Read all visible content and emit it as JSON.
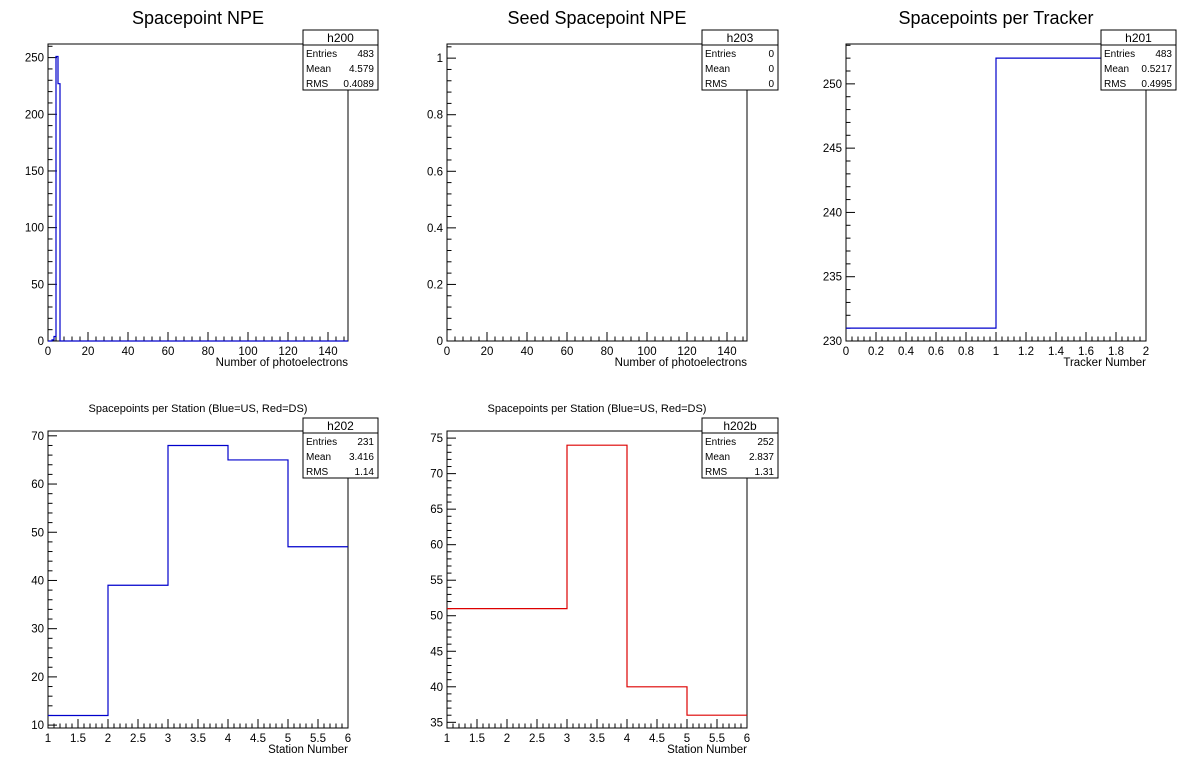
{
  "chart_data": [
    {
      "type": "histogram",
      "title": "Spacepoint NPE",
      "xlabel": "Number of photoelectrons",
      "ylabel": "",
      "xlim": [
        0,
        150
      ],
      "ylim": [
        0,
        262
      ],
      "xticks": [
        0,
        20,
        40,
        60,
        80,
        100,
        120,
        140
      ],
      "yticks": [
        0,
        50,
        100,
        150,
        200,
        250
      ],
      "line_color": "#0000cc",
      "bins": [
        {
          "x0": 0,
          "x1": 2,
          "value": 0
        },
        {
          "x0": 2,
          "x1": 3,
          "value": 1
        },
        {
          "x0": 3,
          "x1": 4,
          "value": 4
        },
        {
          "x0": 4,
          "x1": 5,
          "value": 251
        },
        {
          "x0": 5,
          "x1": 6,
          "value": 227
        },
        {
          "x0": 6,
          "x1": 150,
          "value": 0
        }
      ],
      "stats": {
        "name": "h200",
        "rows": [
          [
            "Entries",
            "483"
          ],
          [
            "Mean",
            "4.579"
          ],
          [
            "RMS",
            "0.4089"
          ]
        ]
      }
    },
    {
      "type": "histogram",
      "title": "Seed Spacepoint NPE",
      "xlabel": "Number of photoelectrons",
      "ylabel": "",
      "xlim": [
        0,
        150
      ],
      "ylim": [
        0,
        1.05
      ],
      "xticks": [
        0,
        20,
        40,
        60,
        80,
        100,
        120,
        140
      ],
      "yticks": [
        0,
        0.2,
        0.4,
        0.6,
        0.8,
        1
      ],
      "ytick_labels": [
        "0",
        "0.2",
        "0.4",
        "0.6",
        "0.8",
        "1"
      ],
      "line_color": "#0000cc",
      "bins": [],
      "stats": {
        "name": "h203",
        "rows": [
          [
            "Entries",
            "0"
          ],
          [
            "Mean",
            "0"
          ],
          [
            "RMS",
            "0"
          ]
        ]
      }
    },
    {
      "type": "histogram",
      "title": "Spacepoints per Tracker",
      "xlabel": "Tracker Number",
      "ylabel": "",
      "xlim": [
        0,
        2
      ],
      "ylim": [
        230,
        253.1
      ],
      "xticks": [
        0,
        0.2,
        0.4,
        0.6,
        0.8,
        1,
        1.2,
        1.4,
        1.6,
        1.8,
        2
      ],
      "xtick_labels": [
        "0",
        "0.2",
        "0.4",
        "0.6",
        "0.8",
        "1",
        "1.2",
        "1.4",
        "1.6",
        "1.8",
        "2"
      ],
      "yticks": [
        230,
        235,
        240,
        245,
        250
      ],
      "line_color": "#0000cc",
      "bins": [
        {
          "x0": 0,
          "x1": 1,
          "value": 231
        },
        {
          "x0": 1,
          "x1": 2,
          "value": 252
        }
      ],
      "stats": {
        "name": "h201",
        "rows": [
          [
            "Entries",
            "483"
          ],
          [
            "Mean",
            "0.5217"
          ],
          [
            "RMS",
            "0.4995"
          ]
        ]
      }
    },
    {
      "type": "histogram",
      "title": "Spacepoints per Station (Blue=US, Red=DS)",
      "xlabel": "Station Number",
      "ylabel": "",
      "xlim": [
        1,
        6
      ],
      "ylim": [
        9.4,
        71
      ],
      "xticks": [
        1,
        1.5,
        2,
        2.5,
        3,
        3.5,
        4,
        4.5,
        5,
        5.5,
        6
      ],
      "xtick_labels": [
        "1",
        "1.5",
        "2",
        "2.5",
        "3",
        "3.5",
        "4",
        "4.5",
        "5",
        "5.5",
        "6"
      ],
      "yticks": [
        10,
        20,
        30,
        40,
        50,
        60,
        70
      ],
      "line_color": "#0000cc",
      "bins": [
        {
          "x0": 1,
          "x1": 2,
          "value": 12
        },
        {
          "x0": 2,
          "x1": 3,
          "value": 39
        },
        {
          "x0": 3,
          "x1": 4,
          "value": 68
        },
        {
          "x0": 4,
          "x1": 5,
          "value": 65
        },
        {
          "x0": 5,
          "x1": 6,
          "value": 47
        }
      ],
      "stats": {
        "name": "h202",
        "rows": [
          [
            "Entries",
            "231"
          ],
          [
            "Mean",
            "3.416"
          ],
          [
            "RMS",
            "1.14"
          ]
        ]
      }
    },
    {
      "type": "histogram",
      "title": "Spacepoints per Station (Blue=US, Red=DS)",
      "xlabel": "Station Number",
      "ylabel": "",
      "xlim": [
        1,
        6
      ],
      "ylim": [
        34.2,
        76
      ],
      "xticks": [
        1,
        1.5,
        2,
        2.5,
        3,
        3.5,
        4,
        4.5,
        5,
        5.5,
        6
      ],
      "xtick_labels": [
        "1",
        "1.5",
        "2",
        "2.5",
        "3",
        "3.5",
        "4",
        "4.5",
        "5",
        "5.5",
        "6"
      ],
      "yticks": [
        35,
        40,
        45,
        50,
        55,
        60,
        65,
        70,
        75
      ],
      "line_color": "#dd0000",
      "bins": [
        {
          "x0": 1,
          "x1": 3,
          "value": 51
        },
        {
          "x0": 3,
          "x1": 4,
          "value": 74
        },
        {
          "x0": 4,
          "x1": 5,
          "value": 40
        },
        {
          "x0": 5,
          "x1": 6,
          "value": 36
        }
      ],
      "stats": {
        "name": "h202b",
        "rows": [
          [
            "Entries",
            "252"
          ],
          [
            "Mean",
            "2.837"
          ],
          [
            "RMS",
            "1.31"
          ]
        ]
      }
    }
  ]
}
